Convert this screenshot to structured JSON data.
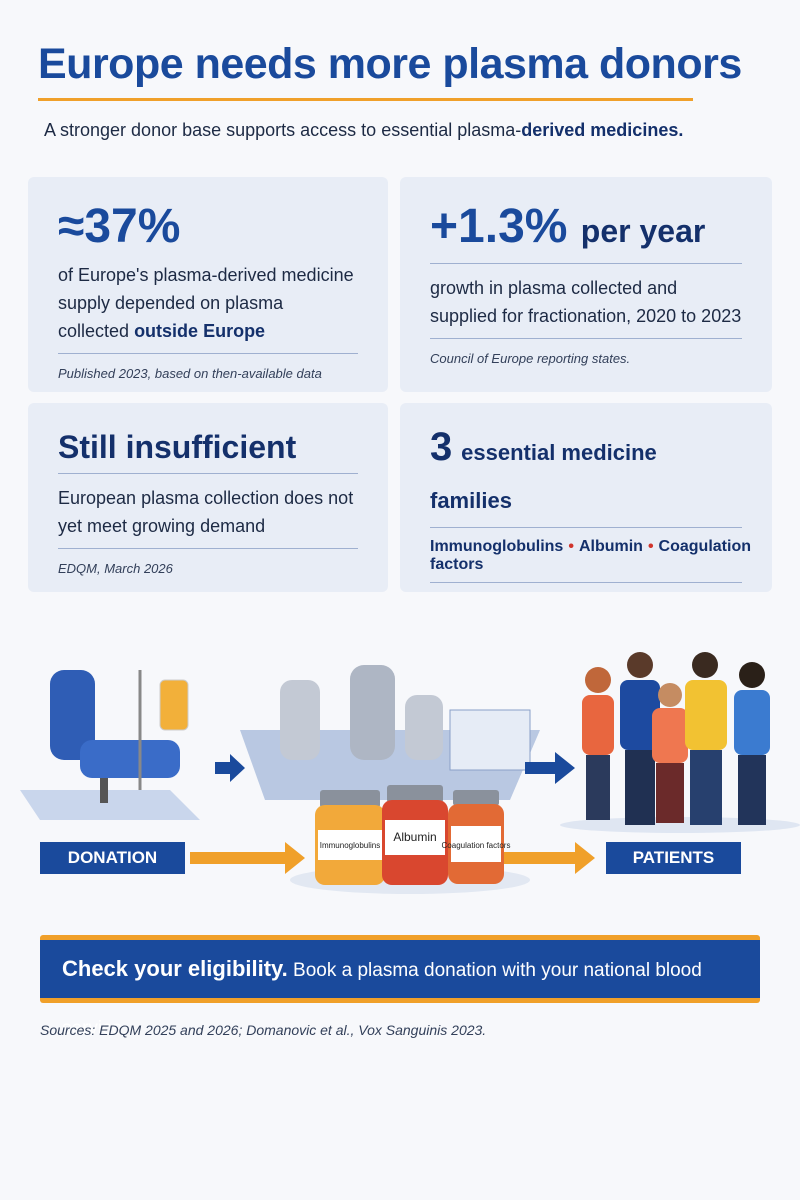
{
  "header": {
    "title": "Europe needs more plasma donors",
    "subtitle": "A stronger donor base supports access to essential plasma-",
    "subtitle_emphasis": "derived medicines."
  },
  "cards": [
    {
      "stat": "≈37%",
      "text": "of Europe's plasma-derived medicine supply depended on plasma collected",
      "text_emphasis": "outside Europe",
      "note": "Published 2023, based on then-available data"
    },
    {
      "stat": "+1.3%",
      "stat_suffix": "per year",
      "text": "growth in plasma collected and supplied for fractionation, 2020 to 2023",
      "note": "Council of Europe reporting states."
    },
    {
      "stat": "Still insufficient",
      "text": "European plasma collection does not yet meet growing demand",
      "note": "EDQM, March 2026"
    },
    {
      "stat": "3",
      "stat_suffix": "essential medicine families",
      "items": [
        "Immunoglobulins",
        "Albumin",
        "Coagulation factors"
      ]
    }
  ],
  "flow": {
    "start": "DONATION",
    "end": "PATIENTS",
    "vials": [
      "Immunoglobulins",
      "Albumin",
      "Coagulation factors"
    ]
  },
  "cta": {
    "emphasis": "Check your eligibility.",
    "text": "Book a plasma donation with your national blood service."
  },
  "sources": "Sources: EDQM 2025 and 2026; Domanovic et al., Vox Sanguinis 2023."
}
